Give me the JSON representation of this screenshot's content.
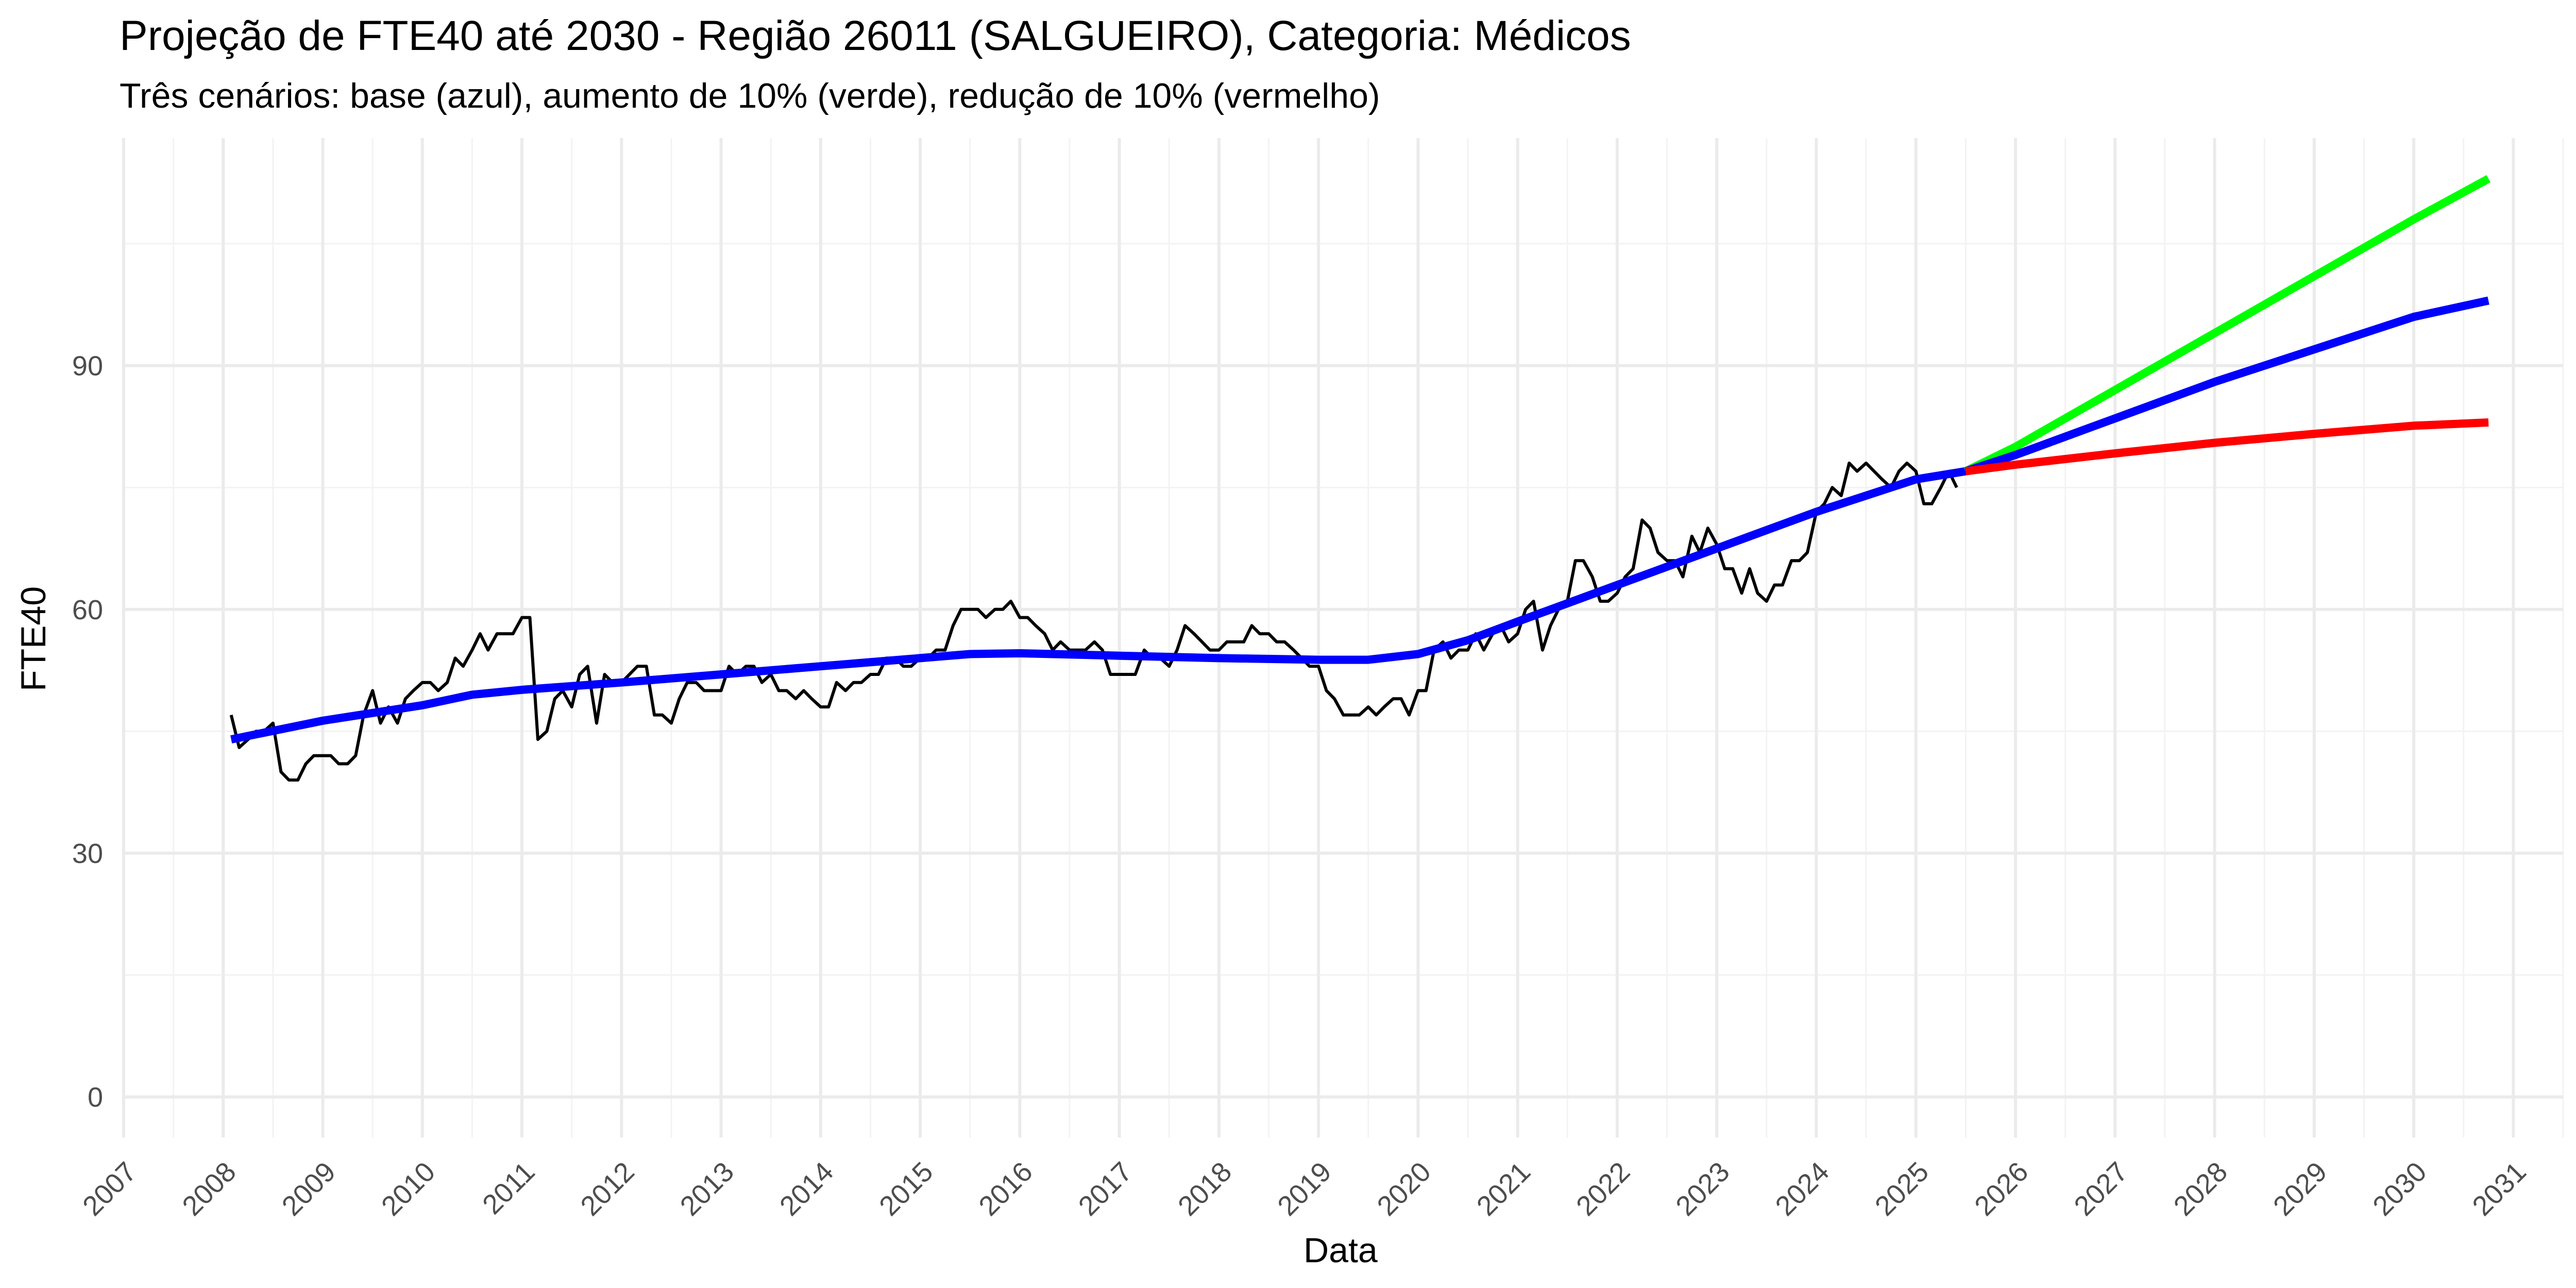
{
  "chart_data": {
    "type": "line",
    "title": "Projeção de FTE40 até 2030 - Região 26011 (SALGUEIRO), Categoria: Médicos",
    "subtitle": "Três cenários: base (azul), aumento de 10% (verde), redução de 10% (vermelho)",
    "xlabel": "Data",
    "ylabel": "FTE40",
    "xlim": [
      2007.0,
      2031.5
    ],
    "ylim": [
      -5,
      118
    ],
    "x_ticks": [
      "2007",
      "2008",
      "2009",
      "2010",
      "2011",
      "2012",
      "2013",
      "2014",
      "2015",
      "2016",
      "2017",
      "2018",
      "2019",
      "2020",
      "2021",
      "2022",
      "2023",
      "2024",
      "2025",
      "2026",
      "2027",
      "2028",
      "2029",
      "2030",
      "2031"
    ],
    "y_ticks": [
      0,
      30,
      60,
      90
    ],
    "grid": true,
    "legend": "none",
    "series": [
      {
        "color": "#000000",
        "width": 6,
        "points": [
          [
            2008.08,
            47
          ],
          [
            2008.16,
            43
          ],
          [
            2008.25,
            44
          ],
          [
            2008.33,
            45
          ],
          [
            2008.41,
            45
          ],
          [
            2008.5,
            46
          ],
          [
            2008.58,
            40
          ],
          [
            2008.66,
            39
          ],
          [
            2008.75,
            39
          ],
          [
            2008.83,
            41
          ],
          [
            2008.91,
            42
          ],
          [
            2009.0,
            42
          ],
          [
            2009.08,
            42
          ],
          [
            2009.16,
            41
          ],
          [
            2009.25,
            41
          ],
          [
            2009.33,
            42
          ],
          [
            2009.41,
            47
          ],
          [
            2009.5,
            50
          ],
          [
            2009.58,
            46
          ],
          [
            2009.66,
            48
          ],
          [
            2009.75,
            46
          ],
          [
            2009.83,
            49
          ],
          [
            2009.91,
            50
          ],
          [
            2010.0,
            51
          ],
          [
            2010.08,
            51
          ],
          [
            2010.16,
            50
          ],
          [
            2010.25,
            51
          ],
          [
            2010.33,
            54
          ],
          [
            2010.41,
            53
          ],
          [
            2010.5,
            55
          ],
          [
            2010.58,
            57
          ],
          [
            2010.66,
            55
          ],
          [
            2010.75,
            57
          ],
          [
            2010.83,
            57
          ],
          [
            2010.91,
            57
          ],
          [
            2011.0,
            59
          ],
          [
            2011.08,
            59
          ],
          [
            2011.16,
            44
          ],
          [
            2011.25,
            45
          ],
          [
            2011.33,
            49
          ],
          [
            2011.41,
            50
          ],
          [
            2011.5,
            48
          ],
          [
            2011.58,
            52
          ],
          [
            2011.66,
            53
          ],
          [
            2011.75,
            46
          ],
          [
            2011.83,
            52
          ],
          [
            2011.91,
            51
          ],
          [
            2012.0,
            51
          ],
          [
            2012.08,
            52
          ],
          [
            2012.16,
            53
          ],
          [
            2012.25,
            53
          ],
          [
            2012.33,
            47
          ],
          [
            2012.41,
            47
          ],
          [
            2012.5,
            46
          ],
          [
            2012.58,
            49
          ],
          [
            2012.66,
            51
          ],
          [
            2012.75,
            51
          ],
          [
            2012.83,
            50
          ],
          [
            2012.91,
            50
          ],
          [
            2013.0,
            50
          ],
          [
            2013.08,
            53
          ],
          [
            2013.16,
            52
          ],
          [
            2013.25,
            53
          ],
          [
            2013.33,
            53
          ],
          [
            2013.41,
            51
          ],
          [
            2013.5,
            52
          ],
          [
            2013.58,
            50
          ],
          [
            2013.66,
            50
          ],
          [
            2013.75,
            49
          ],
          [
            2013.83,
            50
          ],
          [
            2013.91,
            49
          ],
          [
            2014.0,
            48
          ],
          [
            2014.08,
            48
          ],
          [
            2014.16,
            51
          ],
          [
            2014.25,
            50
          ],
          [
            2014.33,
            51
          ],
          [
            2014.41,
            51
          ],
          [
            2014.5,
            52
          ],
          [
            2014.58,
            52
          ],
          [
            2014.66,
            54
          ],
          [
            2014.75,
            54
          ],
          [
            2014.83,
            53
          ],
          [
            2014.91,
            53
          ],
          [
            2015.0,
            54
          ],
          [
            2015.08,
            54
          ],
          [
            2015.16,
            55
          ],
          [
            2015.25,
            55
          ],
          [
            2015.33,
            58
          ],
          [
            2015.41,
            60
          ],
          [
            2015.5,
            60
          ],
          [
            2015.58,
            60
          ],
          [
            2015.66,
            59
          ],
          [
            2015.75,
            60
          ],
          [
            2015.83,
            60
          ],
          [
            2015.91,
            61
          ],
          [
            2016.0,
            59
          ],
          [
            2016.08,
            59
          ],
          [
            2016.16,
            58
          ],
          [
            2016.25,
            57
          ],
          [
            2016.33,
            55
          ],
          [
            2016.41,
            56
          ],
          [
            2016.5,
            55
          ],
          [
            2016.58,
            55
          ],
          [
            2016.66,
            55
          ],
          [
            2016.75,
            56
          ],
          [
            2016.83,
            55
          ],
          [
            2016.91,
            52
          ],
          [
            2017.0,
            52
          ],
          [
            2017.08,
            52
          ],
          [
            2017.16,
            52
          ],
          [
            2017.25,
            55
          ],
          [
            2017.33,
            54
          ],
          [
            2017.41,
            54
          ],
          [
            2017.5,
            53
          ],
          [
            2017.58,
            55
          ],
          [
            2017.66,
            58
          ],
          [
            2017.75,
            57
          ],
          [
            2017.83,
            56
          ],
          [
            2017.91,
            55
          ],
          [
            2018.0,
            55
          ],
          [
            2018.08,
            56
          ],
          [
            2018.16,
            56
          ],
          [
            2018.25,
            56
          ],
          [
            2018.33,
            58
          ],
          [
            2018.41,
            57
          ],
          [
            2018.5,
            57
          ],
          [
            2018.58,
            56
          ],
          [
            2018.66,
            56
          ],
          [
            2018.75,
            55
          ],
          [
            2018.83,
            54
          ],
          [
            2018.91,
            53
          ],
          [
            2019.0,
            53
          ],
          [
            2019.08,
            50
          ],
          [
            2019.16,
            49
          ],
          [
            2019.25,
            47
          ],
          [
            2019.33,
            47
          ],
          [
            2019.41,
            47
          ],
          [
            2019.5,
            48
          ],
          [
            2019.58,
            47
          ],
          [
            2019.66,
            48
          ],
          [
            2019.75,
            49
          ],
          [
            2019.83,
            49
          ],
          [
            2019.91,
            47
          ],
          [
            2020.0,
            50
          ],
          [
            2020.08,
            50
          ],
          [
            2020.16,
            55
          ],
          [
            2020.25,
            56
          ],
          [
            2020.33,
            54
          ],
          [
            2020.41,
            55
          ],
          [
            2020.5,
            55
          ],
          [
            2020.58,
            57
          ],
          [
            2020.66,
            55
          ],
          [
            2020.75,
            57
          ],
          [
            2020.83,
            58
          ],
          [
            2020.91,
            56
          ],
          [
            2021.0,
            57
          ],
          [
            2021.08,
            60
          ],
          [
            2021.16,
            61
          ],
          [
            2021.25,
            55
          ],
          [
            2021.33,
            58
          ],
          [
            2021.41,
            60
          ],
          [
            2021.5,
            61
          ],
          [
            2021.58,
            66
          ],
          [
            2021.66,
            66
          ],
          [
            2021.75,
            64
          ],
          [
            2021.83,
            61
          ],
          [
            2021.91,
            61
          ],
          [
            2022.0,
            62
          ],
          [
            2022.08,
            64
          ],
          [
            2022.16,
            65
          ],
          [
            2022.25,
            71
          ],
          [
            2022.33,
            70
          ],
          [
            2022.41,
            67
          ],
          [
            2022.5,
            66
          ],
          [
            2022.58,
            66
          ],
          [
            2022.66,
            64
          ],
          [
            2022.75,
            69
          ],
          [
            2022.83,
            67
          ],
          [
            2022.91,
            70
          ],
          [
            2023.0,
            68
          ],
          [
            2023.08,
            65
          ],
          [
            2023.16,
            65
          ],
          [
            2023.25,
            62
          ],
          [
            2023.33,
            65
          ],
          [
            2023.41,
            62
          ],
          [
            2023.5,
            61
          ],
          [
            2023.58,
            63
          ],
          [
            2023.66,
            63
          ],
          [
            2023.75,
            66
          ],
          [
            2023.83,
            66
          ],
          [
            2023.91,
            67
          ],
          [
            2024.0,
            72
          ],
          [
            2024.08,
            73
          ],
          [
            2024.16,
            75
          ],
          [
            2024.25,
            74
          ],
          [
            2024.33,
            78
          ],
          [
            2024.41,
            77
          ],
          [
            2024.5,
            78
          ],
          [
            2024.58,
            77
          ],
          [
            2024.66,
            76
          ],
          [
            2024.75,
            75
          ],
          [
            2024.83,
            77
          ],
          [
            2024.91,
            78
          ],
          [
            2025.0,
            77
          ],
          [
            2025.08,
            73
          ],
          [
            2025.16,
            73
          ],
          [
            2025.25,
            75
          ],
          [
            2025.33,
            77
          ],
          [
            2025.41,
            75
          ]
        ]
      },
      {
        "color": "#0000ff",
        "width": 16,
        "points": [
          [
            2008.08,
            44
          ],
          [
            2009.0,
            46.3
          ],
          [
            2010.0,
            48.2
          ],
          [
            2010.5,
            49.5
          ],
          [
            2011.0,
            50.1
          ],
          [
            2012.0,
            51
          ],
          [
            2013.0,
            52
          ],
          [
            2014.0,
            53
          ],
          [
            2015.0,
            54
          ],
          [
            2015.5,
            54.5
          ],
          [
            2016.0,
            54.6
          ],
          [
            2017.0,
            54.3
          ],
          [
            2018.0,
            54
          ],
          [
            2019.0,
            53.8
          ],
          [
            2019.5,
            53.8
          ],
          [
            2020.0,
            54.5
          ],
          [
            2020.5,
            56.2
          ],
          [
            2021.0,
            58.5
          ],
          [
            2022.0,
            63
          ],
          [
            2023.0,
            67.5
          ],
          [
            2024.0,
            72
          ],
          [
            2025.0,
            76
          ],
          [
            2025.5,
            77
          ]
        ]
      },
      {
        "color": "#00ff00",
        "width": 16,
        "points": [
          [
            2025.5,
            77
          ],
          [
            2026.0,
            80
          ],
          [
            2027.0,
            87
          ],
          [
            2028.0,
            94
          ],
          [
            2029.0,
            101
          ],
          [
            2030.0,
            108
          ],
          [
            2030.75,
            113
          ]
        ]
      },
      {
        "color": "#0000ff",
        "width": 16,
        "points": [
          [
            2025.5,
            77
          ],
          [
            2026.0,
            79
          ],
          [
            2027.0,
            83.5
          ],
          [
            2028.0,
            88
          ],
          [
            2029.0,
            92
          ],
          [
            2030.0,
            96
          ],
          [
            2030.75,
            98
          ]
        ]
      },
      {
        "color": "#ff0000",
        "width": 16,
        "points": [
          [
            2025.5,
            77
          ],
          [
            2026.0,
            77.8
          ],
          [
            2027.0,
            79.2
          ],
          [
            2028.0,
            80.5
          ],
          [
            2029.0,
            81.6
          ],
          [
            2030.0,
            82.6
          ],
          [
            2030.75,
            83
          ]
        ]
      }
    ]
  }
}
